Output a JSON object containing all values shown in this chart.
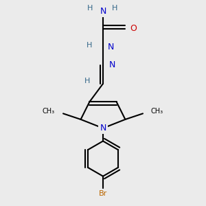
{
  "bg_color": "#ebebeb",
  "atom_colors": {
    "C": "#000000",
    "N": "#0000cc",
    "O": "#cc0000",
    "Br": "#bb6600",
    "H": "#336688"
  },
  "bond_color": "#000000",
  "bond_width": 1.5,
  "xlim": [
    0,
    3
  ],
  "ylim": [
    -0.3,
    3.2
  ],
  "figsize": [
    3.0,
    3.0
  ],
  "dpi": 100
}
